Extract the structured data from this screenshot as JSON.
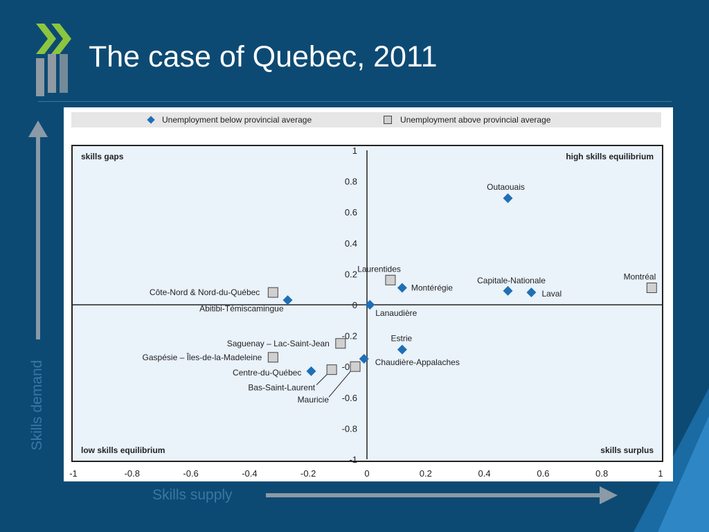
{
  "slide": {
    "title": "The case of Quebec, 2011",
    "y_arrow_label": "Skills demand",
    "x_arrow_label": "Skills supply",
    "colors": {
      "background": "#0d4a73",
      "logo_green": "#8cc63f",
      "logo_grey": "#8f9aa3",
      "arrow_grey": "#8a9aa6",
      "caption_blue": "#3a77a3"
    }
  },
  "chart_data": {
    "type": "scatter",
    "xlim": [
      -1,
      1
    ],
    "ylim": [
      -1,
      1
    ],
    "x_ticks": [
      "-1",
      "-0.8",
      "-0.6",
      "-0.4",
      "-0.2",
      "0",
      "0.2",
      "0.4",
      "0.6",
      "0.8",
      "1"
    ],
    "y_ticks": [
      "1",
      "0.8",
      "0.6",
      "0.4",
      "0.2",
      "0",
      "-0.2",
      "-0.4",
      "-0.6",
      "-0.8",
      "-1"
    ],
    "legend": [
      {
        "label": "Unemployment below provincial average",
        "marker": "diamond",
        "color": "#1f6fb5"
      },
      {
        "label": "Unemployment above provincial average",
        "marker": "square",
        "color": "#d0d0d0"
      }
    ],
    "quadrants": {
      "top_left": "skills gaps",
      "top_right": "high skills equilibrium",
      "bottom_left": "low skills equilibrium",
      "bottom_right": "skills surplus"
    },
    "points": [
      {
        "name": "Outaouais",
        "x": 0.48,
        "y": 0.69,
        "group": "below"
      },
      {
        "name": "Laurentides",
        "x": 0.08,
        "y": 0.16,
        "group": "above"
      },
      {
        "name": "Montérégie",
        "x": 0.12,
        "y": 0.11,
        "group": "below"
      },
      {
        "name": "Capitale-Nationale",
        "x": 0.48,
        "y": 0.09,
        "group": "below"
      },
      {
        "name": "Laval",
        "x": 0.56,
        "y": 0.08,
        "group": "below"
      },
      {
        "name": "Montréal",
        "x": 0.97,
        "y": 0.11,
        "group": "above"
      },
      {
        "name": "Côte-Nord & Nord-du-Québec",
        "x": -0.32,
        "y": 0.08,
        "group": "above"
      },
      {
        "name": "Abitibi-Témiscamingue",
        "x": -0.27,
        "y": 0.03,
        "group": "below"
      },
      {
        "name": "Lanaudière",
        "x": 0.01,
        "y": 0.0,
        "group": "below"
      },
      {
        "name": "Saguenay – Lac-Saint-Jean",
        "x": -0.09,
        "y": -0.25,
        "group": "above"
      },
      {
        "name": "Estrie",
        "x": 0.12,
        "y": -0.29,
        "group": "below"
      },
      {
        "name": "Gaspésie – Îles-de-la-Madeleine",
        "x": -0.32,
        "y": -0.34,
        "group": "above"
      },
      {
        "name": "Chaudière-Appalaches",
        "x": -0.01,
        "y": -0.35,
        "group": "below"
      },
      {
        "name": "Centre-du-Québec",
        "x": -0.19,
        "y": -0.43,
        "group": "below"
      },
      {
        "name": "Bas-Saint-Laurent",
        "x": -0.12,
        "y": -0.42,
        "group": "above"
      },
      {
        "name": "Mauricie",
        "x": -0.04,
        "y": -0.4,
        "group": "above"
      }
    ]
  }
}
